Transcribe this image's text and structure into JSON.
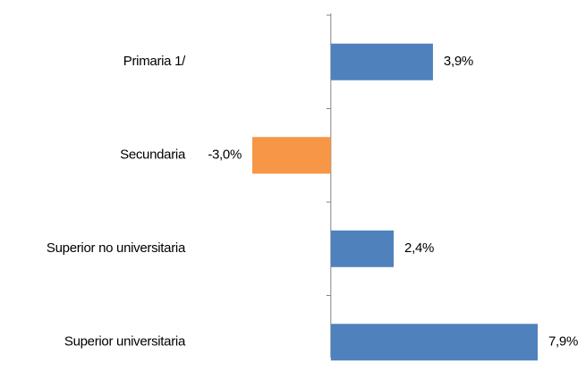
{
  "chart_data": {
    "type": "hbar",
    "categories": [
      "Primaria  1/",
      "Secundaria",
      "Superior no universitaria",
      "Superior universitaria"
    ],
    "values": [
      3.9,
      -3.0,
      2.4,
      7.9
    ],
    "value_labels": [
      "3,9%",
      "-3,0%",
      "2,4%",
      "7,9%"
    ],
    "colors": [
      "#4f81bd",
      "#f79646",
      "#4f81bd",
      "#4f81bd"
    ]
  }
}
